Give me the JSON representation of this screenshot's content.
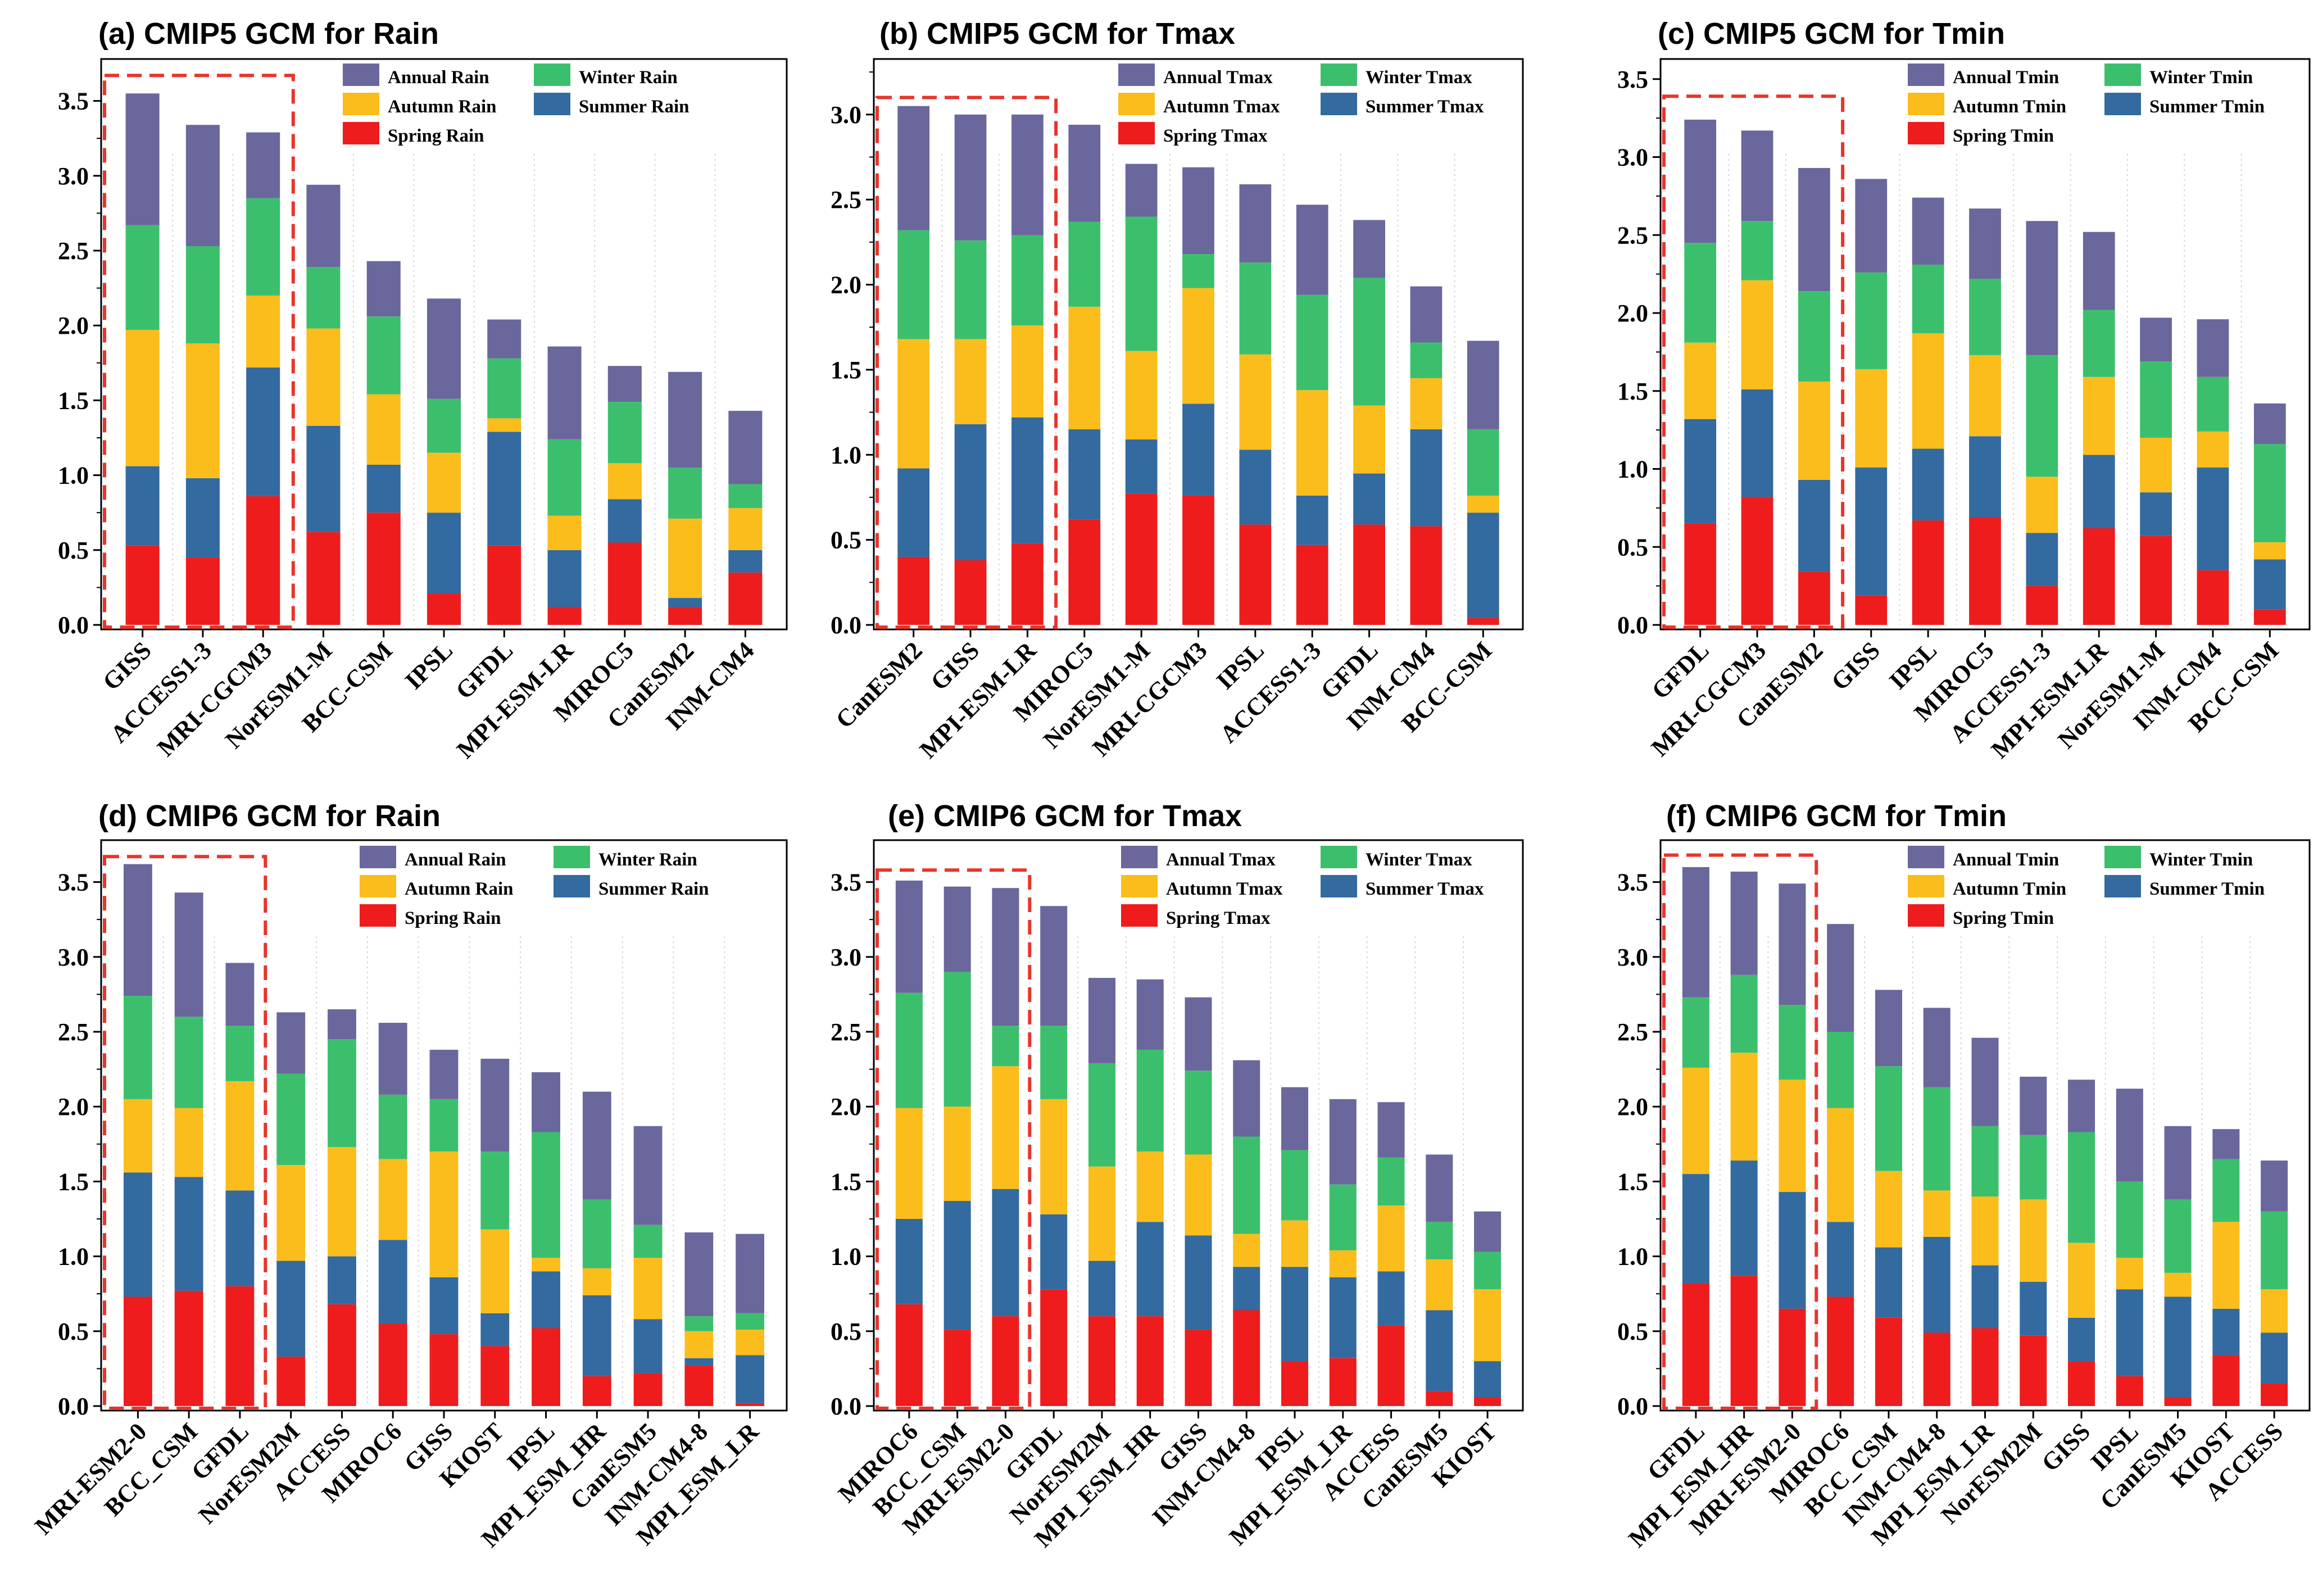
{
  "colors": {
    "annual": "#6a679d",
    "winter": "#3cbf6d",
    "autumn": "#fbbd1b",
    "summer": "#336aa0",
    "spring": "#ee1c1c",
    "highlight_box": "#e8352b",
    "grid": "#d4d4d4"
  },
  "chart_data": [
    {
      "type": "bar",
      "stacked": true,
      "title": "(a) CMIP5 GCM for Rain",
      "categories": [
        "GISS",
        "ACCESS1-3",
        "MRI-CGCM3",
        "NorESM1-M",
        "BCC-CSM",
        "IPSL",
        "GFDL",
        "MPI-ESM-LR",
        "MIROC5",
        "CanESM2",
        "INM-CM4"
      ],
      "series": [
        {
          "name": "Spring Rain",
          "color_key": "spring",
          "values": [
            0.53,
            0.45,
            0.86,
            0.62,
            0.75,
            0.21,
            0.53,
            0.12,
            0.55,
            0.12,
            0.35
          ]
        },
        {
          "name": "Summer Rain",
          "color_key": "summer",
          "values": [
            0.53,
            0.53,
            0.86,
            0.71,
            0.32,
            0.54,
            0.76,
            0.38,
            0.29,
            0.06,
            0.15
          ]
        },
        {
          "name": "Autumn Rain",
          "color_key": "autumn",
          "values": [
            0.91,
            0.9,
            0.48,
            0.65,
            0.47,
            0.4,
            0.09,
            0.23,
            0.24,
            0.53,
            0.28
          ]
        },
        {
          "name": "Winter Rain",
          "color_key": "winter",
          "values": [
            0.7,
            0.65,
            0.65,
            0.41,
            0.52,
            0.36,
            0.4,
            0.51,
            0.41,
            0.34,
            0.16
          ]
        },
        {
          "name": "Annual Rain",
          "color_key": "annual",
          "values": [
            0.88,
            0.81,
            0.44,
            0.55,
            0.37,
            0.67,
            0.26,
            0.62,
            0.24,
            0.64,
            0.49
          ]
        }
      ],
      "legend": [
        {
          "label": "Annual Rain",
          "color_key": "annual"
        },
        {
          "label": "Winter Rain",
          "color_key": "winter"
        },
        {
          "label": "Autumn Rain",
          "color_key": "autumn"
        },
        {
          "label": "Summer Rain",
          "color_key": "summer"
        },
        {
          "label": "Spring Rain",
          "color_key": "spring"
        }
      ],
      "legend_position": "top-right",
      "highlighted_categories": 3,
      "highlight_top": 3.67,
      "ylim": [
        0,
        3.75
      ],
      "yticks": [
        "0.0",
        "0.5",
        "1.0",
        "1.5",
        "2.0",
        "2.5",
        "3.0",
        "3.5"
      ],
      "ytick_values": [
        0,
        0.5,
        1,
        1.5,
        2,
        2.5,
        3,
        3.5
      ],
      "grid": "vertical dotted"
    },
    {
      "type": "bar",
      "stacked": true,
      "title": "(b) CMIP5 GCM for Tmax",
      "categories": [
        "CanESM2",
        "GISS",
        "MPI-ESM-LR",
        "MIROC5",
        "NorESM1-M",
        "MRI-CGCM3",
        "IPSL",
        "ACCESS1-3",
        "GFDL",
        "INM-CM4",
        "BCC-CSM"
      ],
      "series": [
        {
          "name": "Spring Tmax",
          "color_key": "spring",
          "values": [
            0.4,
            0.38,
            0.48,
            0.62,
            0.77,
            0.76,
            0.59,
            0.47,
            0.59,
            0.58,
            0.04
          ]
        },
        {
          "name": "Summer Tmax",
          "color_key": "summer",
          "values": [
            0.52,
            0.8,
            0.74,
            0.53,
            0.32,
            0.54,
            0.44,
            0.29,
            0.3,
            0.57,
            0.62
          ]
        },
        {
          "name": "Autumn Tmax",
          "color_key": "autumn",
          "values": [
            0.76,
            0.5,
            0.54,
            0.72,
            0.52,
            0.68,
            0.56,
            0.62,
            0.4,
            0.3,
            0.1
          ]
        },
        {
          "name": "Winter Tmax",
          "color_key": "winter",
          "values": [
            0.64,
            0.58,
            0.53,
            0.5,
            0.79,
            0.2,
            0.54,
            0.56,
            0.75,
            0.21,
            0.39
          ]
        },
        {
          "name": "Annual Tmax",
          "color_key": "annual",
          "values": [
            0.73,
            0.74,
            0.71,
            0.57,
            0.31,
            0.51,
            0.46,
            0.53,
            0.34,
            0.33,
            0.52
          ]
        }
      ],
      "legend": [
        {
          "label": "Annual Tmax",
          "color_key": "annual"
        },
        {
          "label": "Winter Tmax",
          "color_key": "winter"
        },
        {
          "label": "Autumn Tmax",
          "color_key": "autumn"
        },
        {
          "label": "Summer Tmax",
          "color_key": "summer"
        },
        {
          "label": "Spring Tmax",
          "color_key": "spring"
        }
      ],
      "legend_position": "top-right",
      "highlighted_categories": 3,
      "highlight_top": 3.1,
      "ylim": [
        0,
        3.3
      ],
      "yticks": [
        "0.0",
        "0.5",
        "1.0",
        "1.5",
        "2.0",
        "2.5",
        "3.0"
      ],
      "ytick_values": [
        0,
        0.5,
        1,
        1.5,
        2,
        2.5,
        3
      ],
      "grid": "vertical dotted"
    },
    {
      "type": "bar",
      "stacked": true,
      "title": "(c) CMIP5 GCM for Tmin",
      "categories": [
        "GFDL",
        "MRI-CGCM3",
        "CanESM2",
        "GISS",
        "IPSL",
        "MIROC5",
        "ACCESS1-3",
        "MPI-ESM-LR",
        "NorESM1-M",
        "INM-CM4",
        "BCC-CSM"
      ],
      "series": [
        {
          "name": "Spring Tmin",
          "color_key": "spring",
          "values": [
            0.65,
            0.82,
            0.34,
            0.19,
            0.67,
            0.69,
            0.25,
            0.62,
            0.57,
            0.35,
            0.1
          ]
        },
        {
          "name": "Summer Tmin",
          "color_key": "summer",
          "values": [
            0.67,
            0.69,
            0.59,
            0.82,
            0.46,
            0.52,
            0.34,
            0.47,
            0.28,
            0.66,
            0.32
          ]
        },
        {
          "name": "Autumn Tmin",
          "color_key": "autumn",
          "values": [
            0.49,
            0.7,
            0.63,
            0.63,
            0.74,
            0.52,
            0.36,
            0.5,
            0.35,
            0.23,
            0.11
          ]
        },
        {
          "name": "Winter Tmin",
          "color_key": "winter",
          "values": [
            0.64,
            0.38,
            0.58,
            0.62,
            0.44,
            0.49,
            0.78,
            0.43,
            0.49,
            0.35,
            0.63
          ]
        },
        {
          "name": "Annual Tmin",
          "color_key": "annual",
          "values": [
            0.79,
            0.58,
            0.79,
            0.6,
            0.43,
            0.45,
            0.86,
            0.5,
            0.28,
            0.37,
            0.26
          ]
        }
      ],
      "legend": [
        {
          "label": "Annual Tmin",
          "color_key": "annual"
        },
        {
          "label": "Winter Tmin",
          "color_key": "winter"
        },
        {
          "label": "Autumn Tmin",
          "color_key": "autumn"
        },
        {
          "label": "Summer Tmin",
          "color_key": "summer"
        },
        {
          "label": "Spring Tmin",
          "color_key": "spring"
        }
      ],
      "legend_position": "top-right",
      "highlighted_categories": 3,
      "highlight_top": 3.39,
      "ylim": [
        0,
        3.6
      ],
      "yticks": [
        "0.0",
        "0.5",
        "1.0",
        "1.5",
        "2.0",
        "2.5",
        "3.0",
        "3.5"
      ],
      "ytick_values": [
        0,
        0.5,
        1,
        1.5,
        2,
        2.5,
        3,
        3.5
      ],
      "grid": "vertical dotted"
    },
    {
      "type": "bar",
      "stacked": true,
      "title": "(d) CMIP6 GCM for Rain",
      "categories": [
        "MRI-ESM2-0",
        "BCC_CSM",
        "GFDL",
        "NorESM2M",
        "ACCESS",
        "MIROC6",
        "GISS",
        "KIOST",
        "IPSL",
        "MPI_ESM_HR",
        "CanESM5",
        "INM-CM4-8",
        "MPI_ESM_LR"
      ],
      "series": [
        {
          "name": "Spring Rain",
          "color_key": "spring",
          "values": [
            0.73,
            0.77,
            0.8,
            0.33,
            0.68,
            0.55,
            0.48,
            0.4,
            0.52,
            0.2,
            0.22,
            0.27,
            0.02
          ]
        },
        {
          "name": "Summer Rain",
          "color_key": "summer",
          "values": [
            0.83,
            0.76,
            0.64,
            0.64,
            0.32,
            0.56,
            0.38,
            0.22,
            0.38,
            0.54,
            0.36,
            0.05,
            0.32
          ]
        },
        {
          "name": "Autumn Rain",
          "color_key": "autumn",
          "values": [
            0.49,
            0.46,
            0.73,
            0.64,
            0.73,
            0.54,
            0.84,
            0.56,
            0.09,
            0.18,
            0.41,
            0.18,
            0.17
          ]
        },
        {
          "name": "Winter Rain",
          "color_key": "winter",
          "values": [
            0.69,
            0.61,
            0.37,
            0.61,
            0.72,
            0.43,
            0.35,
            0.52,
            0.84,
            0.46,
            0.22,
            0.1,
            0.11
          ]
        },
        {
          "name": "Annual Rain",
          "color_key": "annual",
          "values": [
            0.88,
            0.83,
            0.42,
            0.41,
            0.2,
            0.48,
            0.33,
            0.62,
            0.4,
            0.72,
            0.66,
            0.56,
            0.53
          ]
        }
      ],
      "legend": [
        {
          "label": "Annual Rain",
          "color_key": "annual"
        },
        {
          "label": "Winter Rain",
          "color_key": "winter"
        },
        {
          "label": "Autumn Rain",
          "color_key": "autumn"
        },
        {
          "label": "Summer Rain",
          "color_key": "summer"
        },
        {
          "label": "Spring Rain",
          "color_key": "spring"
        }
      ],
      "legend_position": "top-right",
      "highlighted_categories": 3,
      "highlight_top": 3.67,
      "ylim": [
        0,
        3.75
      ],
      "yticks": [
        "0.0",
        "0.5",
        "1.0",
        "1.5",
        "2.0",
        "2.5",
        "3.0",
        "3.5"
      ],
      "ytick_values": [
        0,
        0.5,
        1,
        1.5,
        2,
        2.5,
        3,
        3.5
      ],
      "grid": "vertical dotted"
    },
    {
      "type": "bar",
      "stacked": true,
      "title": "(e) CMIP6 GCM for Tmax",
      "categories": [
        "MIROC6",
        "BCC_CSM",
        "MRI-ESM2-0",
        "GFDL",
        "NorESM2M",
        "MPI_ESM_HR",
        "GISS",
        "INM-CM4-8",
        "IPSL",
        "MPI_ESM_LR",
        "ACCESS",
        "CanESM5",
        "KIOST"
      ],
      "series": [
        {
          "name": "Spring Tmax",
          "color_key": "spring",
          "values": [
            0.68,
            0.51,
            0.6,
            0.78,
            0.6,
            0.6,
            0.51,
            0.64,
            0.3,
            0.32,
            0.54,
            0.1,
            0.06
          ]
        },
        {
          "name": "Summer Tmax",
          "color_key": "summer",
          "values": [
            0.57,
            0.86,
            0.85,
            0.5,
            0.37,
            0.63,
            0.63,
            0.29,
            0.63,
            0.54,
            0.36,
            0.54,
            0.24
          ]
        },
        {
          "name": "Autumn Tmax",
          "color_key": "autumn",
          "values": [
            0.74,
            0.63,
            0.82,
            0.77,
            0.63,
            0.47,
            0.54,
            0.22,
            0.31,
            0.18,
            0.44,
            0.34,
            0.48
          ]
        },
        {
          "name": "Winter Tmax",
          "color_key": "winter",
          "values": [
            0.77,
            0.9,
            0.27,
            0.49,
            0.69,
            0.68,
            0.56,
            0.65,
            0.47,
            0.44,
            0.32,
            0.25,
            0.25
          ]
        },
        {
          "name": "Annual Tmax",
          "color_key": "annual",
          "values": [
            0.75,
            0.57,
            0.92,
            0.8,
            0.57,
            0.47,
            0.49,
            0.51,
            0.42,
            0.57,
            0.37,
            0.45,
            0.27
          ]
        }
      ],
      "legend": [
        {
          "label": "Annual Tmax",
          "color_key": "annual"
        },
        {
          "label": "Winter Tmax",
          "color_key": "winter"
        },
        {
          "label": "Autumn Tmax",
          "color_key": "autumn"
        },
        {
          "label": "Summer Tmax",
          "color_key": "summer"
        },
        {
          "label": "Spring Tmax",
          "color_key": "spring"
        }
      ],
      "legend_position": "top-right",
      "highlighted_categories": 3,
      "highlight_top": 3.58,
      "ylim": [
        0,
        3.75
      ],
      "yticks": [
        "0.0",
        "0.5",
        "1.0",
        "1.5",
        "2.0",
        "2.5",
        "3.0",
        "3.5"
      ],
      "ytick_values": [
        0,
        0.5,
        1,
        1.5,
        2,
        2.5,
        3,
        3.5
      ],
      "grid": "vertical dotted"
    },
    {
      "type": "bar",
      "stacked": true,
      "title": "(f) CMIP6 GCM for Tmin",
      "categories": [
        "GFDL",
        "MPI_ESM_HR",
        "MRI-ESM2-0",
        "MIROC6",
        "BCC_CSM",
        "INM-CM4-8",
        "MPI_ESM_LR",
        "NorESM2M",
        "GISS",
        "IPSL",
        "CanESM5",
        "KIOST",
        "ACCESS"
      ],
      "series": [
        {
          "name": "Spring Tmin",
          "color_key": "spring",
          "values": [
            0.82,
            0.87,
            0.65,
            0.73,
            0.59,
            0.49,
            0.52,
            0.47,
            0.3,
            0.2,
            0.06,
            0.34,
            0.15
          ]
        },
        {
          "name": "Summer Tmin",
          "color_key": "summer",
          "values": [
            0.73,
            0.77,
            0.78,
            0.5,
            0.47,
            0.64,
            0.42,
            0.36,
            0.29,
            0.58,
            0.67,
            0.31,
            0.34
          ]
        },
        {
          "name": "Autumn Tmin",
          "color_key": "autumn",
          "values": [
            0.71,
            0.72,
            0.75,
            0.76,
            0.51,
            0.31,
            0.46,
            0.55,
            0.5,
            0.21,
            0.16,
            0.58,
            0.29
          ]
        },
        {
          "name": "Winter Tmin",
          "color_key": "winter",
          "values": [
            0.47,
            0.52,
            0.5,
            0.51,
            0.7,
            0.69,
            0.47,
            0.43,
            0.74,
            0.51,
            0.49,
            0.42,
            0.52
          ]
        },
        {
          "name": "Annual Tmin",
          "color_key": "annual",
          "values": [
            0.87,
            0.69,
            0.81,
            0.72,
            0.51,
            0.53,
            0.59,
            0.39,
            0.35,
            0.62,
            0.49,
            0.2,
            0.34
          ]
        }
      ],
      "legend": [
        {
          "label": "Annual Tmin",
          "color_key": "annual"
        },
        {
          "label": "Winter Tmin",
          "color_key": "winter"
        },
        {
          "label": "Autumn Tmin",
          "color_key": "autumn"
        },
        {
          "label": "Summer Tmin",
          "color_key": "summer"
        },
        {
          "label": "Spring Tmin",
          "color_key": "spring"
        }
      ],
      "legend_position": "top-right",
      "highlighted_categories": 3,
      "highlight_top": 3.68,
      "ylim": [
        0,
        3.75
      ],
      "yticks": [
        "0.0",
        "0.5",
        "1.0",
        "1.5",
        "2.0",
        "2.5",
        "3.0",
        "3.5"
      ],
      "ytick_values": [
        0,
        0.5,
        1,
        1.5,
        2,
        2.5,
        3,
        3.5
      ],
      "grid": "vertical dotted"
    }
  ]
}
